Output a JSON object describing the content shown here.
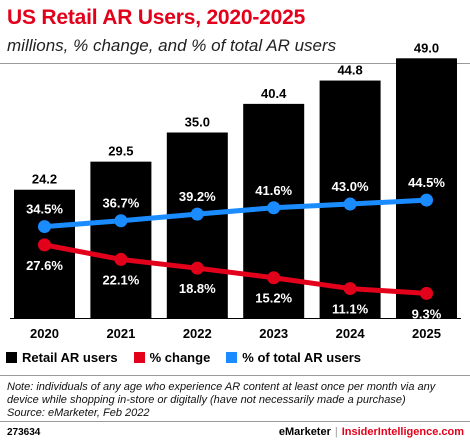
{
  "header": {
    "title": "US Retail AR Users, 2020-2025",
    "subtitle": "millions, % change, and % of total AR users"
  },
  "chart_data": {
    "type": "bar",
    "categories": [
      "2020",
      "2021",
      "2022",
      "2023",
      "2024",
      "2025"
    ],
    "bar_series": {
      "name": "Retail AR users",
      "values": [
        24.2,
        29.5,
        35.0,
        40.4,
        44.8,
        49.0
      ],
      "labels": [
        "24.2",
        "29.5",
        "35.0",
        "40.4",
        "44.8",
        "49.0"
      ],
      "color": "#000000",
      "ylim": [
        0,
        50
      ]
    },
    "line_series": [
      {
        "name": "% change",
        "values": [
          27.6,
          22.1,
          18.8,
          15.2,
          11.1,
          9.3
        ],
        "labels": [
          "27.6%",
          "22.1%",
          "18.8%",
          "15.2%",
          "11.1%",
          "9.3%"
        ],
        "color": "#e3001b"
      },
      {
        "name": "% of total AR users",
        "values": [
          34.5,
          36.7,
          39.2,
          41.6,
          43.0,
          44.5
        ],
        "labels": [
          "34.5%",
          "36.7%",
          "39.2%",
          "41.6%",
          "43.0%",
          "44.5%"
        ],
        "color": "#1a8cff"
      }
    ],
    "line_ylim": [
      0,
      100
    ],
    "legend_position": "bottom-left",
    "grid": false
  },
  "legend": {
    "bars_label": "Retail AR users",
    "change_label": "% change",
    "share_label": "% of total AR users"
  },
  "footer": {
    "note": "Note: individuals of any age who experience AR content at least once per month via any device while shopping in-store or digitally (have not necessarily made a purchase)",
    "source": "Source: eMarketer, Feb 2022",
    "chart_id": "273634",
    "brand_left": "eMarketer",
    "separator": "|",
    "brand_right": "InsiderIntelligence.com"
  }
}
